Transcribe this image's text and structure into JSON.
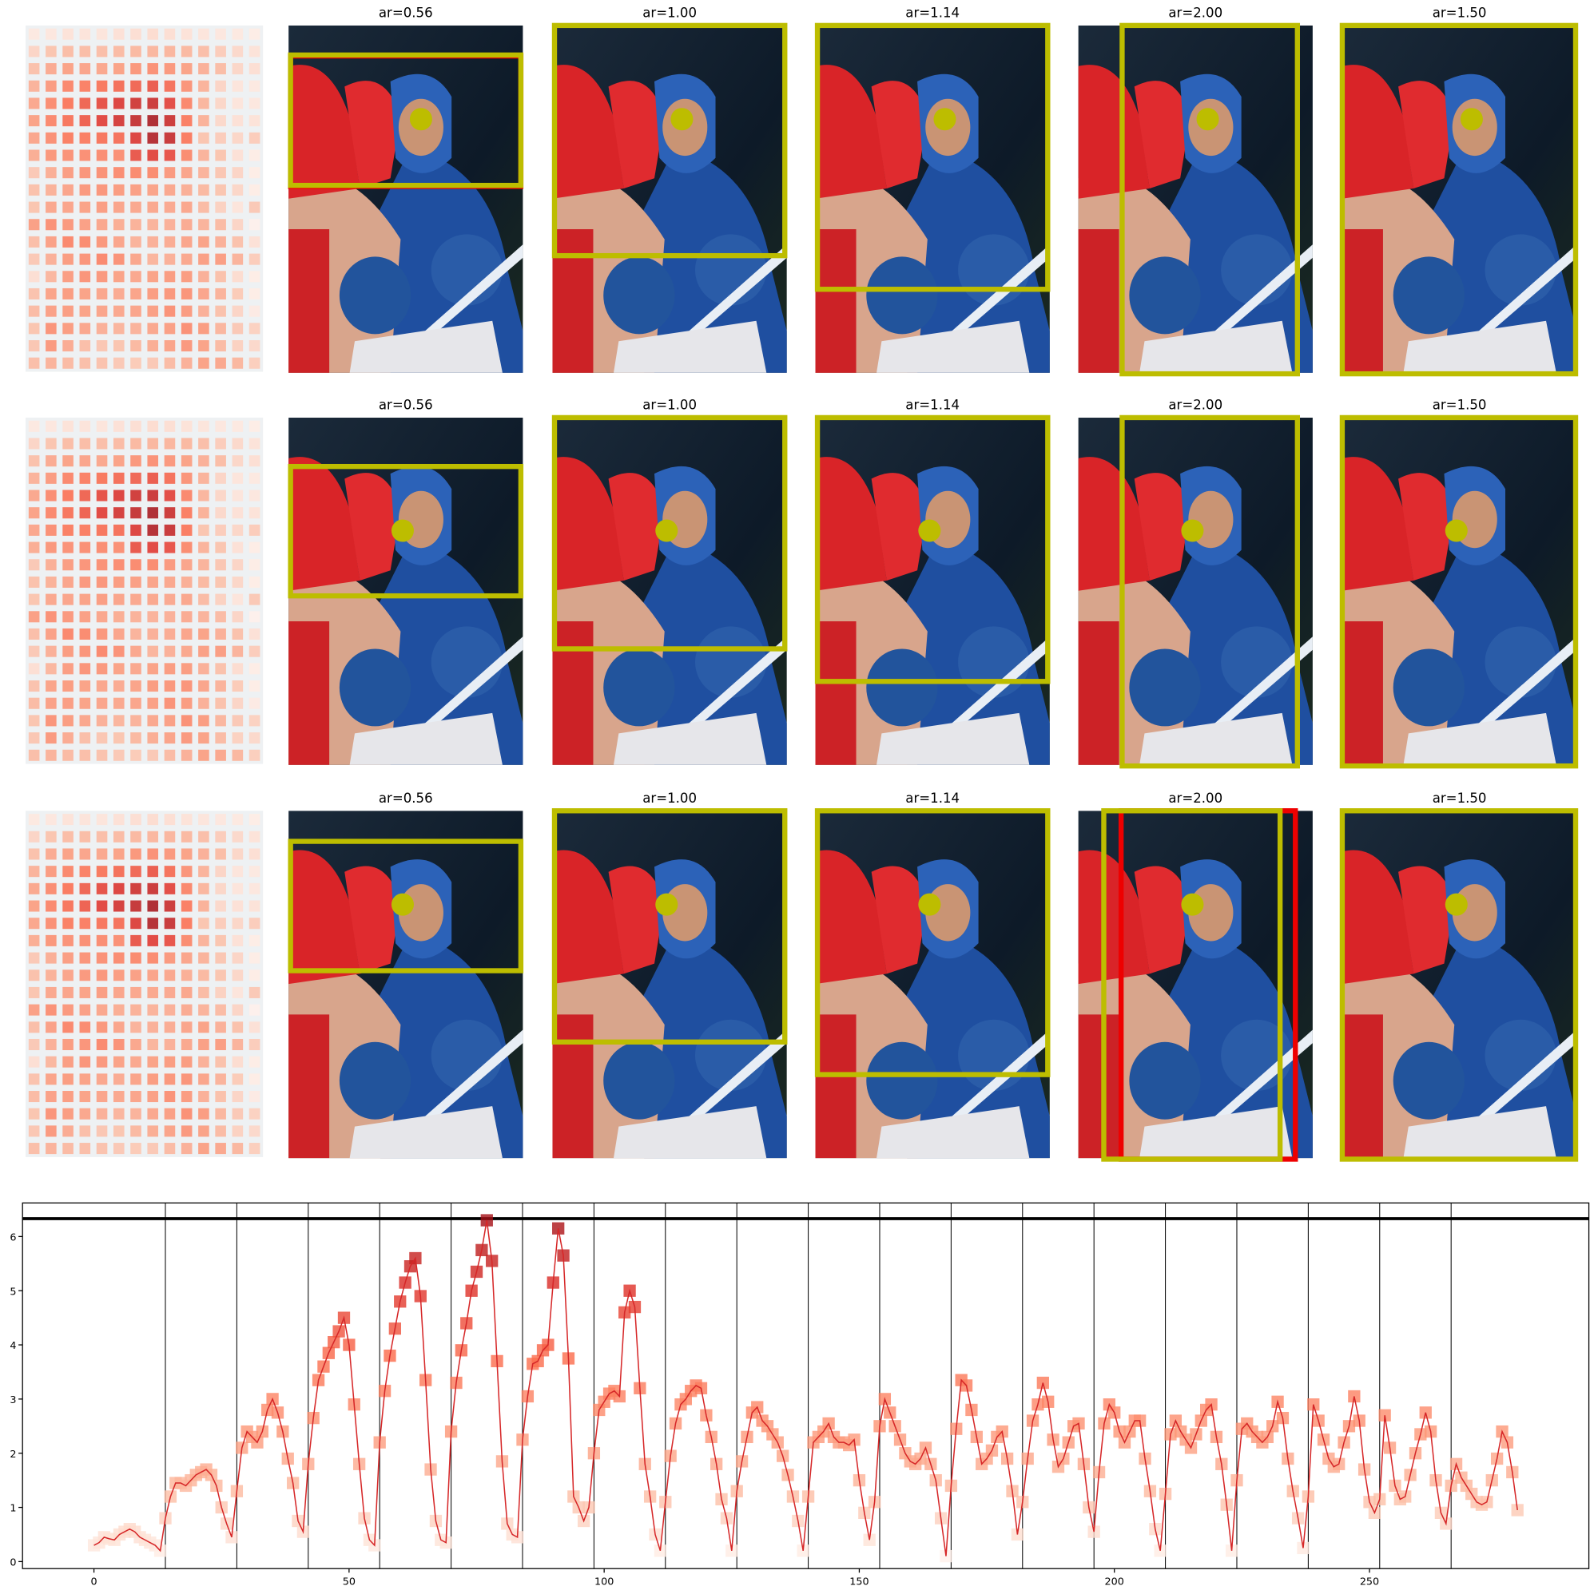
{
  "panels": {
    "titles": [
      [
        "ar=0.56",
        "ar=1.00",
        "ar=1.14",
        "ar=2.00",
        "ar=1.50"
      ],
      [
        "ar=0.56",
        "ar=1.00",
        "ar=1.14",
        "ar=2.00",
        "ar=1.50"
      ],
      [
        "ar=0.56",
        "ar=1.00",
        "ar=1.14",
        "ar=2.00",
        "ar=1.50"
      ]
    ]
  },
  "chart_data": {
    "type": "line",
    "color": "#d62728",
    "colormap": [
      "#fff5f0",
      "#fcbba1",
      "#fc9272",
      "#fb6a4a",
      "#de2d26",
      "#a50f15"
    ],
    "xlim": [
      -14,
      293
    ],
    "ylim": [
      -0.13,
      6.62
    ],
    "xticks": [
      0,
      50,
      100,
      150,
      200,
      250
    ],
    "yticks": [
      0,
      1,
      2,
      3,
      4,
      5,
      6
    ],
    "hline": 6.33,
    "vlines": [
      14,
      28,
      42,
      56,
      70,
      84,
      98,
      112,
      126,
      140,
      154,
      168,
      182,
      196,
      210,
      224,
      238,
      252,
      266
    ],
    "values": [
      0.3,
      0.35,
      0.45,
      0.42,
      0.4,
      0.5,
      0.55,
      0.6,
      0.55,
      0.45,
      0.4,
      0.35,
      0.3,
      0.2,
      0.8,
      1.2,
      1.45,
      1.45,
      1.4,
      1.5,
      1.6,
      1.65,
      1.7,
      1.6,
      1.4,
      1.0,
      0.7,
      0.45,
      1.3,
      2.1,
      2.4,
      2.3,
      2.2,
      2.4,
      2.8,
      3.0,
      2.75,
      2.4,
      1.9,
      1.45,
      0.75,
      0.55,
      1.8,
      2.65,
      3.35,
      3.6,
      3.85,
      4.05,
      4.25,
      4.5,
      4.0,
      2.9,
      1.8,
      0.8,
      0.4,
      0.3,
      2.2,
      3.15,
      3.8,
      4.3,
      4.8,
      5.15,
      5.45,
      5.6,
      4.9,
      3.35,
      1.7,
      0.75,
      0.4,
      0.35,
      2.4,
      3.3,
      3.9,
      4.4,
      5.0,
      5.35,
      5.75,
      6.3,
      5.55,
      3.7,
      1.85,
      0.7,
      0.5,
      0.45,
      2.25,
      3.05,
      3.65,
      3.7,
      3.9,
      4.0,
      5.15,
      6.15,
      5.65,
      3.75,
      1.2,
      1.0,
      0.75,
      1.0,
      2.0,
      2.8,
      2.95,
      3.1,
      3.15,
      3.05,
      4.6,
      5.0,
      4.7,
      3.2,
      1.8,
      1.2,
      0.5,
      0.2,
      1.1,
      1.95,
      2.55,
      2.9,
      3.0,
      3.15,
      3.25,
      3.2,
      2.7,
      2.3,
      1.8,
      1.15,
      0.8,
      0.2,
      1.3,
      1.85,
      2.3,
      2.75,
      2.85,
      2.6,
      2.5,
      2.35,
      2.2,
      1.95,
      1.6,
      1.2,
      0.75,
      0.2,
      1.2,
      2.2,
      2.3,
      2.4,
      2.55,
      2.3,
      2.2,
      2.2,
      2.15,
      2.25,
      1.5,
      0.9,
      0.4,
      1.1,
      2.5,
      3.0,
      2.75,
      2.5,
      2.25,
      2.0,
      1.85,
      1.8,
      1.9,
      2.1,
      1.8,
      1.5,
      0.8,
      0.1,
      1.4,
      2.45,
      3.35,
      3.25,
      2.8,
      2.3,
      1.8,
      1.9,
      2.05,
      2.3,
      2.4,
      1.9,
      1.3,
      0.5,
      1.1,
      1.9,
      2.6,
      2.9,
      3.3,
      2.95,
      2.25,
      1.75,
      1.9,
      2.2,
      2.5,
      2.55,
      1.8,
      1.0,
      0.55,
      1.65,
      2.55,
      2.9,
      2.75,
      2.4,
      2.2,
      2.4,
      2.6,
      2.6,
      1.9,
      1.3,
      0.6,
      0.2,
      1.25,
      2.35,
      2.6,
      2.4,
      2.25,
      2.1,
      2.35,
      2.6,
      2.8,
      2.9,
      2.3,
      1.8,
      1.05,
      0.2,
      1.5,
      2.45,
      2.55,
      2.4,
      2.3,
      2.2,
      2.3,
      2.5,
      2.95,
      2.65,
      1.9,
      1.3,
      0.8,
      0.25,
      1.2,
      2.9,
      2.6,
      2.25,
      1.9,
      1.75,
      1.8,
      2.2,
      2.5,
      3.05,
      2.6,
      1.7,
      1.1,
      0.9,
      1.15,
      2.7,
      2.1,
      1.4,
      1.15,
      1.2,
      1.6,
      2.0,
      2.35,
      2.75,
      2.4,
      1.5,
      0.9,
      0.7,
      1.4,
      1.8,
      1.55,
      1.4,
      1.25,
      1.1,
      1.05,
      1.1,
      1.5,
      1.9,
      2.4,
      2.2,
      1.65,
      0.95
    ]
  }
}
